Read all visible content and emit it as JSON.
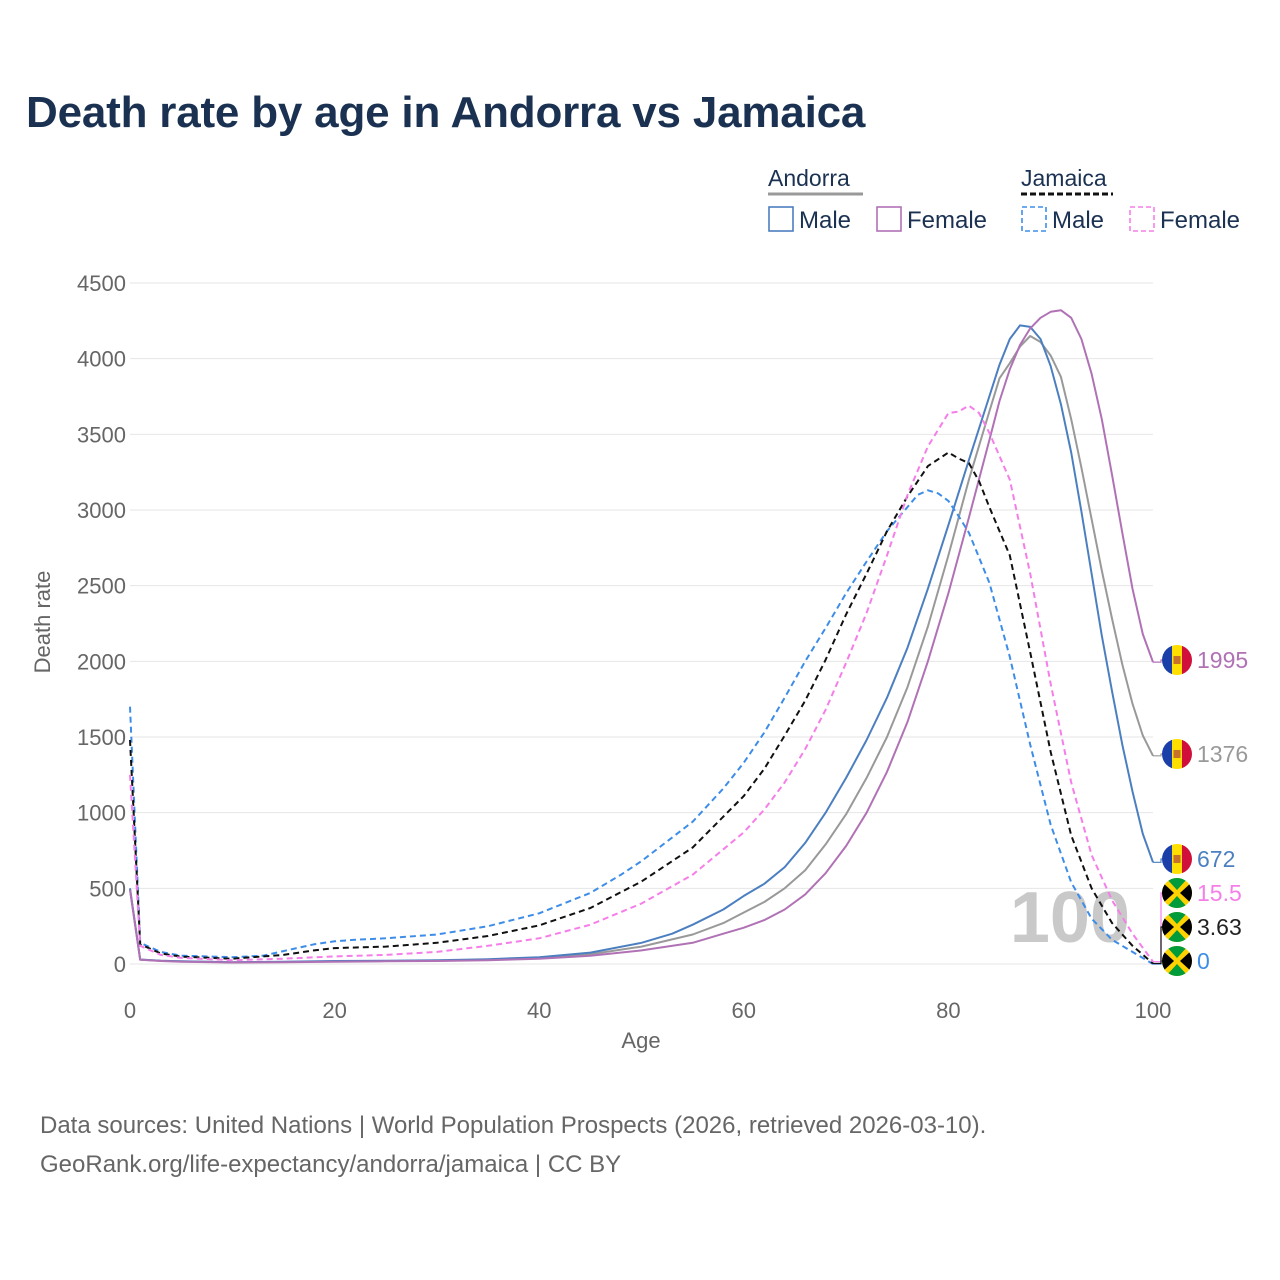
{
  "title": "Death rate by age in Andorra vs Jamaica",
  "footer": {
    "source": "Data sources: United Nations | World Population Prospects (2026, retrieved 2026-03-10).",
    "credit": "GeoRank.org/life-expectancy/andorra/jamaica | CC BY"
  },
  "chart_data": {
    "type": "line",
    "xlabel": "Age",
    "ylabel": "Death rate",
    "xlim": [
      0,
      100
    ],
    "ylim": [
      0,
      4500
    ],
    "xticks": [
      0,
      20,
      40,
      60,
      80,
      100
    ],
    "yticks": [
      0,
      500,
      1000,
      1500,
      2000,
      2500,
      3000,
      3500,
      4000,
      4500
    ],
    "grid": true,
    "watermark": "100",
    "legend": {
      "position": "top-right",
      "groups": [
        {
          "label": "Andorra",
          "style": "solid",
          "items": [
            "Male",
            "Female"
          ]
        },
        {
          "label": "Jamaica",
          "style": "dashed",
          "items": [
            "Male",
            "Female"
          ]
        }
      ]
    },
    "series": [
      {
        "name": "Andorra Male",
        "country": "Andorra",
        "sex": "Male",
        "color": "#4c7fc0",
        "dash": false,
        "end_label": "672",
        "points": [
          [
            0,
            500
          ],
          [
            1,
            30
          ],
          [
            3,
            22
          ],
          [
            5,
            18
          ],
          [
            10,
            12
          ],
          [
            15,
            15
          ],
          [
            20,
            20
          ],
          [
            25,
            22
          ],
          [
            30,
            25
          ],
          [
            35,
            32
          ],
          [
            40,
            45
          ],
          [
            45,
            75
          ],
          [
            50,
            140
          ],
          [
            53,
            200
          ],
          [
            55,
            260
          ],
          [
            58,
            360
          ],
          [
            60,
            450
          ],
          [
            62,
            530
          ],
          [
            64,
            640
          ],
          [
            66,
            800
          ],
          [
            68,
            1000
          ],
          [
            70,
            1230
          ],
          [
            72,
            1480
          ],
          [
            74,
            1760
          ],
          [
            76,
            2090
          ],
          [
            78,
            2480
          ],
          [
            80,
            2900
          ],
          [
            82,
            3330
          ],
          [
            84,
            3750
          ],
          [
            85,
            3960
          ],
          [
            86,
            4130
          ],
          [
            87,
            4220
          ],
          [
            88,
            4210
          ],
          [
            89,
            4130
          ],
          [
            90,
            3950
          ],
          [
            91,
            3700
          ],
          [
            92,
            3380
          ],
          [
            93,
            2990
          ],
          [
            94,
            2580
          ],
          [
            95,
            2170
          ],
          [
            96,
            1800
          ],
          [
            97,
            1450
          ],
          [
            98,
            1140
          ],
          [
            99,
            860
          ],
          [
            100,
            672
          ]
        ]
      },
      {
        "name": "Andorra Female",
        "country": "Andorra",
        "sex": "Female",
        "color": "#b072b5",
        "dash": false,
        "end_label": "1995",
        "points": [
          [
            0,
            490
          ],
          [
            1,
            28
          ],
          [
            3,
            20
          ],
          [
            5,
            15
          ],
          [
            10,
            10
          ],
          [
            15,
            12
          ],
          [
            20,
            15
          ],
          [
            25,
            18
          ],
          [
            30,
            20
          ],
          [
            35,
            25
          ],
          [
            40,
            35
          ],
          [
            45,
            55
          ],
          [
            50,
            90
          ],
          [
            55,
            140
          ],
          [
            58,
            200
          ],
          [
            60,
            240
          ],
          [
            62,
            290
          ],
          [
            64,
            360
          ],
          [
            66,
            460
          ],
          [
            68,
            600
          ],
          [
            70,
            780
          ],
          [
            72,
            1000
          ],
          [
            74,
            1270
          ],
          [
            76,
            1600
          ],
          [
            78,
            2000
          ],
          [
            80,
            2450
          ],
          [
            82,
            2950
          ],
          [
            84,
            3460
          ],
          [
            85,
            3720
          ],
          [
            86,
            3930
          ],
          [
            87,
            4090
          ],
          [
            88,
            4200
          ],
          [
            89,
            4270
          ],
          [
            90,
            4310
          ],
          [
            91,
            4320
          ],
          [
            92,
            4270
          ],
          [
            93,
            4130
          ],
          [
            94,
            3900
          ],
          [
            95,
            3600
          ],
          [
            96,
            3230
          ],
          [
            97,
            2850
          ],
          [
            98,
            2480
          ],
          [
            99,
            2180
          ],
          [
            100,
            1995
          ]
        ]
      },
      {
        "name": "Andorra Both",
        "country": "Andorra",
        "sex": "Both",
        "color": "#999999",
        "dash": false,
        "end_label": "1376",
        "points": [
          [
            0,
            495
          ],
          [
            1,
            29
          ],
          [
            3,
            21
          ],
          [
            5,
            17
          ],
          [
            10,
            11
          ],
          [
            15,
            13
          ],
          [
            20,
            17
          ],
          [
            25,
            20
          ],
          [
            30,
            22
          ],
          [
            35,
            28
          ],
          [
            40,
            40
          ],
          [
            45,
            65
          ],
          [
            50,
            115
          ],
          [
            55,
            195
          ],
          [
            58,
            270
          ],
          [
            60,
            340
          ],
          [
            62,
            410
          ],
          [
            64,
            500
          ],
          [
            66,
            620
          ],
          [
            68,
            790
          ],
          [
            70,
            990
          ],
          [
            72,
            1230
          ],
          [
            74,
            1500
          ],
          [
            76,
            1830
          ],
          [
            78,
            2230
          ],
          [
            80,
            2700
          ],
          [
            82,
            3200
          ],
          [
            84,
            3650
          ],
          [
            85,
            3870
          ],
          [
            86,
            3970
          ],
          [
            87,
            4080
          ],
          [
            88,
            4150
          ],
          [
            89,
            4110
          ],
          [
            90,
            4020
          ],
          [
            91,
            3880
          ],
          [
            92,
            3600
          ],
          [
            93,
            3280
          ],
          [
            94,
            2940
          ],
          [
            95,
            2600
          ],
          [
            96,
            2280
          ],
          [
            97,
            1980
          ],
          [
            98,
            1720
          ],
          [
            99,
            1510
          ],
          [
            100,
            1376
          ]
        ]
      },
      {
        "name": "Jamaica Male",
        "country": "Jamaica",
        "sex": "Male",
        "color": "#3d8de8",
        "dash": true,
        "end_label": "0",
        "points": [
          [
            0,
            1700
          ],
          [
            1,
            140
          ],
          [
            3,
            80
          ],
          [
            5,
            55
          ],
          [
            10,
            45
          ],
          [
            13,
            55
          ],
          [
            15,
            85
          ],
          [
            18,
            130
          ],
          [
            20,
            150
          ],
          [
            22,
            160
          ],
          [
            25,
            170
          ],
          [
            30,
            195
          ],
          [
            35,
            250
          ],
          [
            40,
            335
          ],
          [
            45,
            470
          ],
          [
            48,
            590
          ],
          [
            50,
            680
          ],
          [
            55,
            940
          ],
          [
            58,
            1160
          ],
          [
            60,
            1330
          ],
          [
            62,
            1530
          ],
          [
            64,
            1760
          ],
          [
            66,
            2000
          ],
          [
            68,
            2220
          ],
          [
            70,
            2450
          ],
          [
            72,
            2660
          ],
          [
            74,
            2860
          ],
          [
            76,
            3020
          ],
          [
            77,
            3100
          ],
          [
            78,
            3130
          ],
          [
            79,
            3110
          ],
          [
            80,
            3060
          ],
          [
            81,
            2960
          ],
          [
            82,
            2850
          ],
          [
            84,
            2520
          ],
          [
            86,
            2030
          ],
          [
            88,
            1450
          ],
          [
            90,
            920
          ],
          [
            92,
            540
          ],
          [
            94,
            300
          ],
          [
            96,
            160
          ],
          [
            98,
            80
          ],
          [
            100,
            0
          ]
        ]
      },
      {
        "name": "Jamaica Female",
        "country": "Jamaica",
        "sex": "Female",
        "color": "#f57ee8",
        "dash": true,
        "end_label": "15.5",
        "points": [
          [
            0,
            1250
          ],
          [
            1,
            120
          ],
          [
            3,
            60
          ],
          [
            5,
            40
          ],
          [
            10,
            25
          ],
          [
            15,
            35
          ],
          [
            20,
            50
          ],
          [
            25,
            60
          ],
          [
            30,
            80
          ],
          [
            35,
            120
          ],
          [
            40,
            170
          ],
          [
            45,
            260
          ],
          [
            50,
            400
          ],
          [
            55,
            590
          ],
          [
            60,
            870
          ],
          [
            62,
            1020
          ],
          [
            64,
            1200
          ],
          [
            66,
            1420
          ],
          [
            68,
            1680
          ],
          [
            70,
            1990
          ],
          [
            72,
            2320
          ],
          [
            74,
            2700
          ],
          [
            76,
            3100
          ],
          [
            78,
            3420
          ],
          [
            80,
            3640
          ],
          [
            81,
            3650
          ],
          [
            82,
            3690
          ],
          [
            83,
            3640
          ],
          [
            84,
            3510
          ],
          [
            86,
            3200
          ],
          [
            88,
            2580
          ],
          [
            90,
            1850
          ],
          [
            92,
            1200
          ],
          [
            94,
            720
          ],
          [
            96,
            420
          ],
          [
            98,
            200
          ],
          [
            100,
            15.5
          ]
        ]
      },
      {
        "name": "Jamaica Both",
        "country": "Jamaica",
        "sex": "Both",
        "color": "#111111",
        "dash": true,
        "end_label": "3.63",
        "points": [
          [
            0,
            1480
          ],
          [
            1,
            130
          ],
          [
            3,
            70
          ],
          [
            5,
            48
          ],
          [
            10,
            35
          ],
          [
            15,
            60
          ],
          [
            18,
            90
          ],
          [
            20,
            105
          ],
          [
            25,
            115
          ],
          [
            30,
            140
          ],
          [
            35,
            185
          ],
          [
            40,
            255
          ],
          [
            45,
            370
          ],
          [
            50,
            545
          ],
          [
            55,
            770
          ],
          [
            60,
            1110
          ],
          [
            62,
            1290
          ],
          [
            64,
            1510
          ],
          [
            66,
            1740
          ],
          [
            68,
            2010
          ],
          [
            70,
            2310
          ],
          [
            72,
            2580
          ],
          [
            74,
            2860
          ],
          [
            76,
            3090
          ],
          [
            78,
            3290
          ],
          [
            80,
            3380
          ],
          [
            81,
            3340
          ],
          [
            82,
            3310
          ],
          [
            83,
            3190
          ],
          [
            84,
            3020
          ],
          [
            86,
            2700
          ],
          [
            88,
            2060
          ],
          [
            90,
            1400
          ],
          [
            92,
            850
          ],
          [
            94,
            500
          ],
          [
            96,
            270
          ],
          [
            98,
            120
          ],
          [
            100,
            3.63
          ]
        ]
      }
    ]
  }
}
